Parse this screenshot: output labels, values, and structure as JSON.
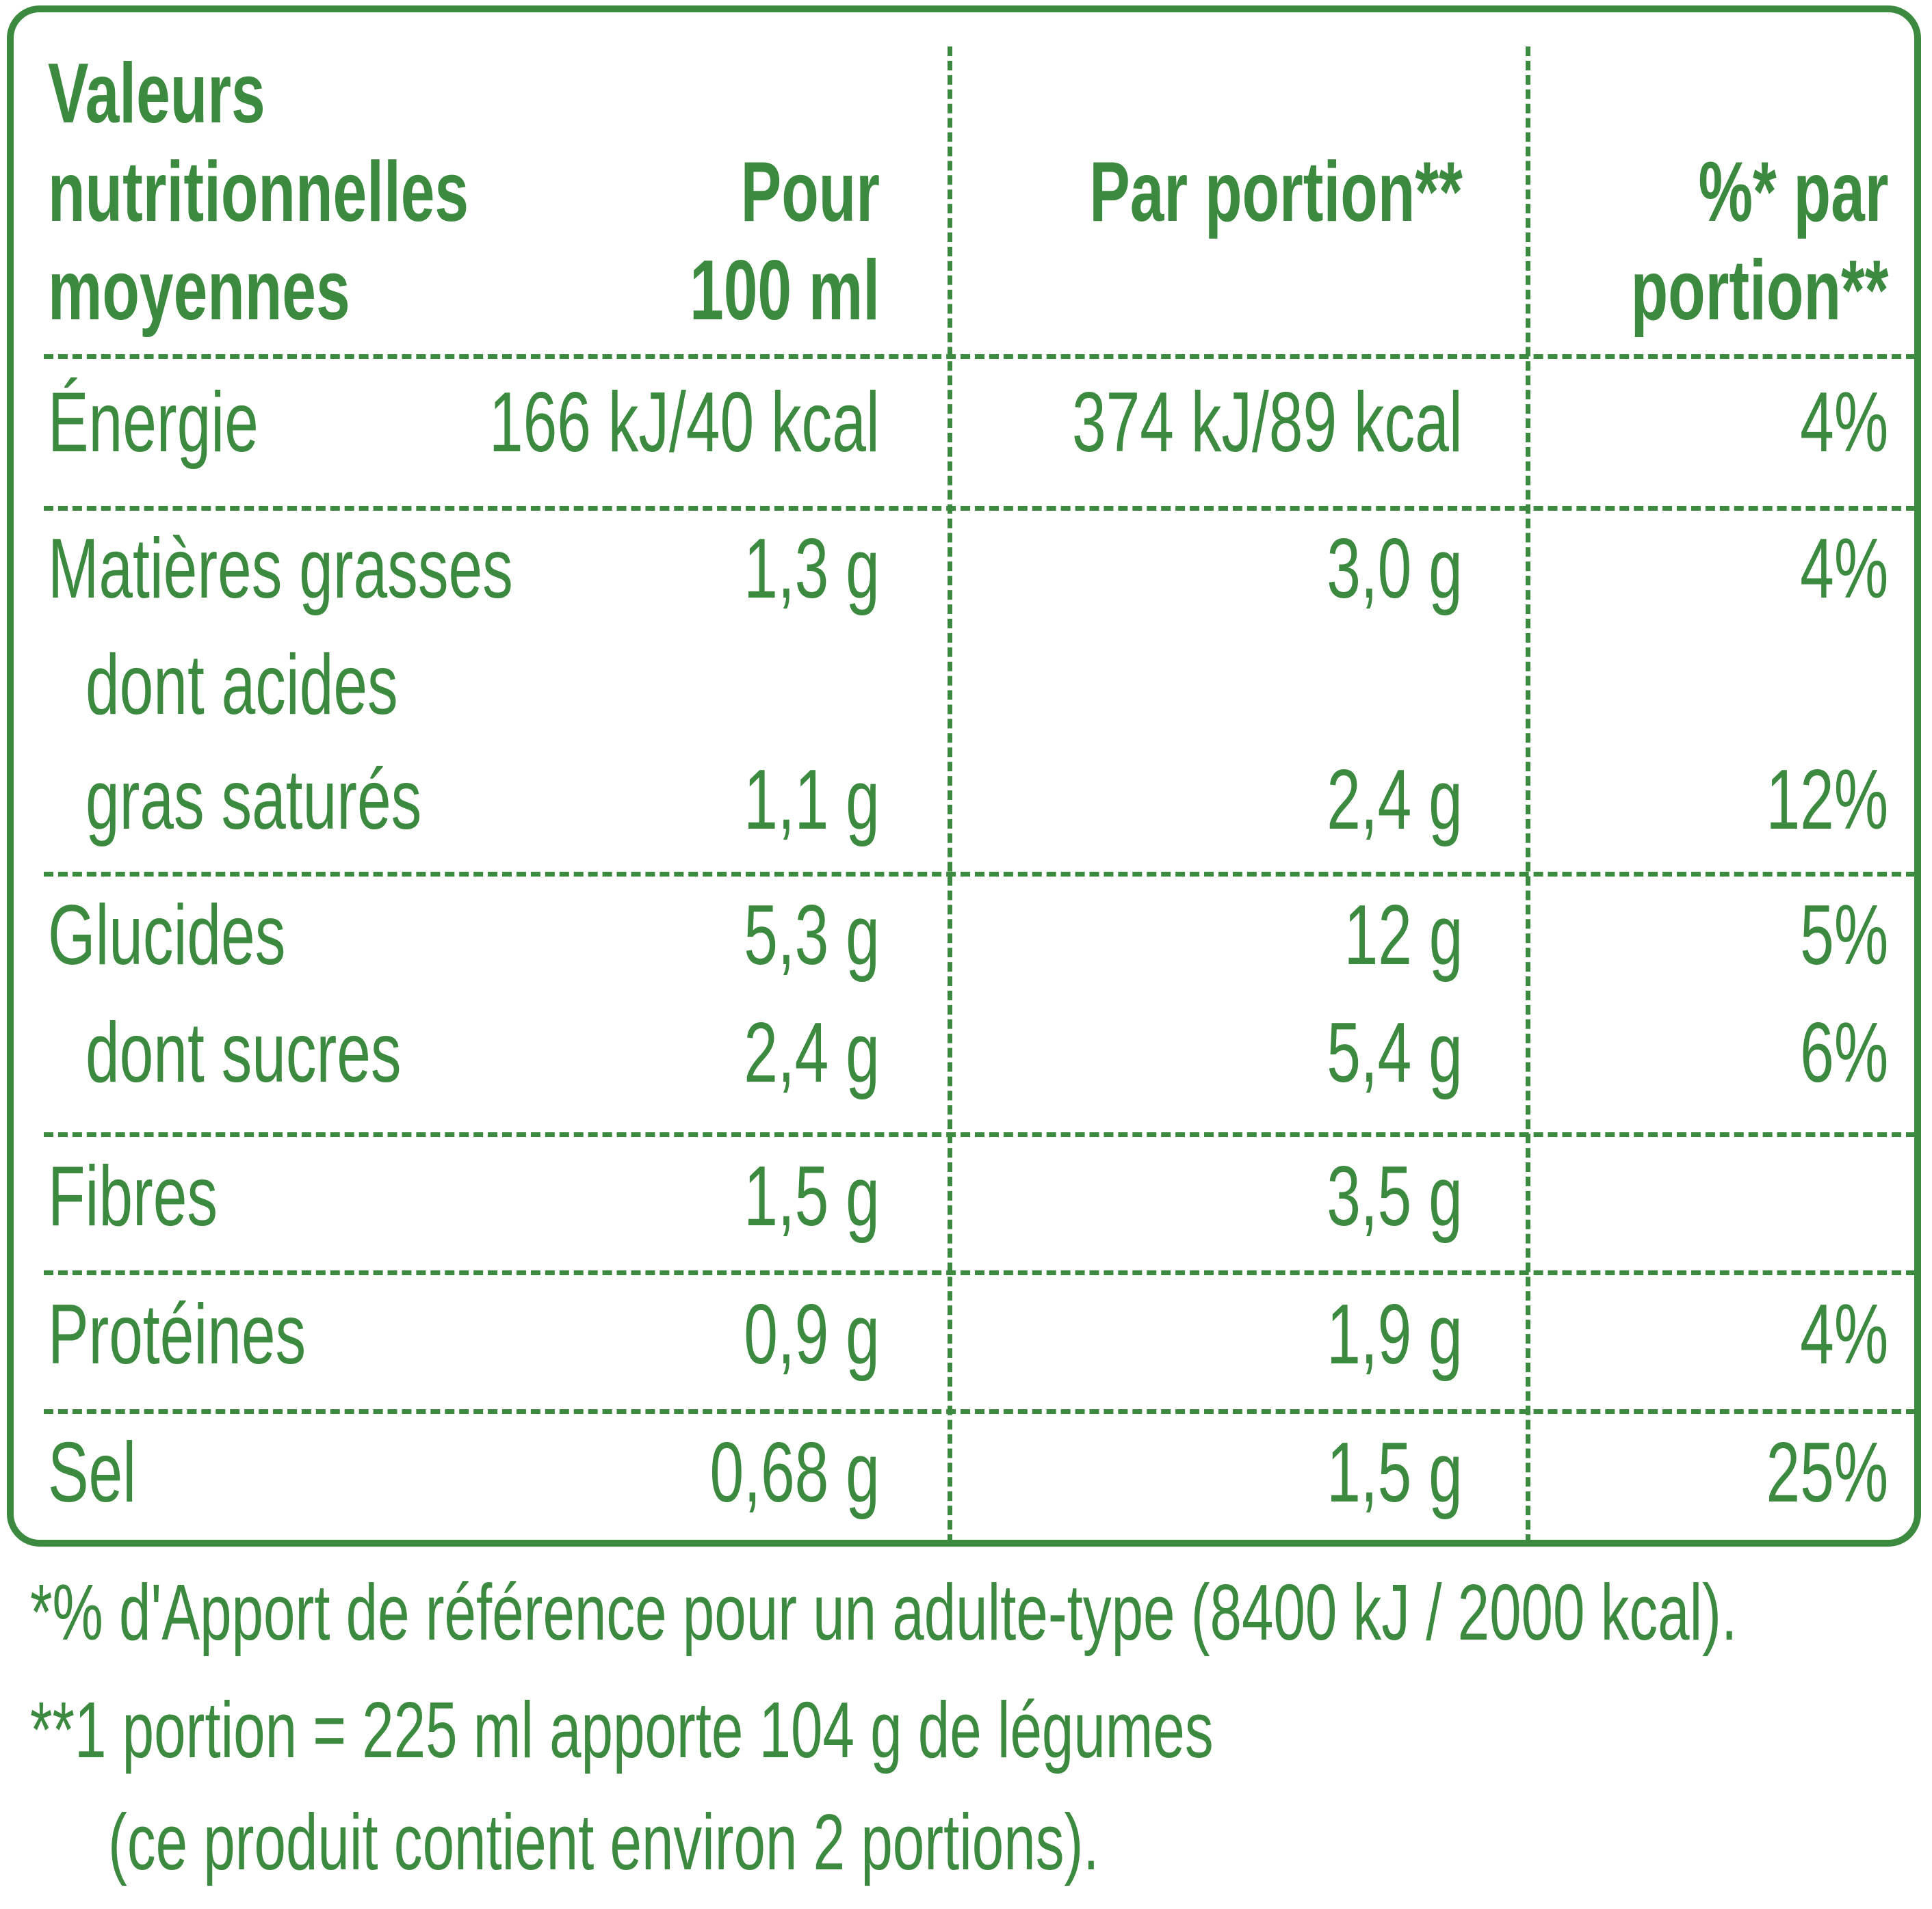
{
  "table": {
    "header": {
      "col1": [
        "Valeurs",
        "nutritionnelles",
        "moyennes"
      ],
      "col2": [
        "Pour",
        "100 ml"
      ],
      "col3": "Par portion**",
      "col4": [
        "%* par",
        "portion**"
      ]
    },
    "rows": [
      {
        "label": "Énergie",
        "per100": "166 kJ/40 kcal",
        "portion": "374 kJ/89 kcal",
        "pct": "4%"
      },
      {
        "label": "Matières grasses",
        "per100": "1,3 g",
        "portion": "3,0 g",
        "pct": "4%"
      },
      {
        "label_lines": [
          "dont acides",
          "gras saturés"
        ],
        "per100": "1,1 g",
        "portion": "2,4 g",
        "pct": "12%"
      },
      {
        "label": "Glucides",
        "per100": "5,3 g",
        "portion": "12 g",
        "pct": "5%"
      },
      {
        "label": "dont sucres",
        "per100": "2,4 g",
        "portion": "5,4 g",
        "pct": "6%"
      },
      {
        "label": "Fibres",
        "per100": "1,5 g",
        "portion": "3,5 g",
        "pct": ""
      },
      {
        "label": "Protéines",
        "per100": "0,9 g",
        "portion": "1,9 g",
        "pct": "4%"
      },
      {
        "label": "Sel",
        "per100": "0,68 g",
        "portion": "1,5 g",
        "pct": "25%"
      }
    ]
  },
  "footnotes": [
    "*% d'Apport de référence pour un adulte-type (8400 kJ / 2000 kcal).",
    "**1 portion = 225 ml apporte 104 g de légumes",
    "(ce produit contient environ 2 portions)."
  ],
  "colors": {
    "green": "#3c8a3f"
  }
}
